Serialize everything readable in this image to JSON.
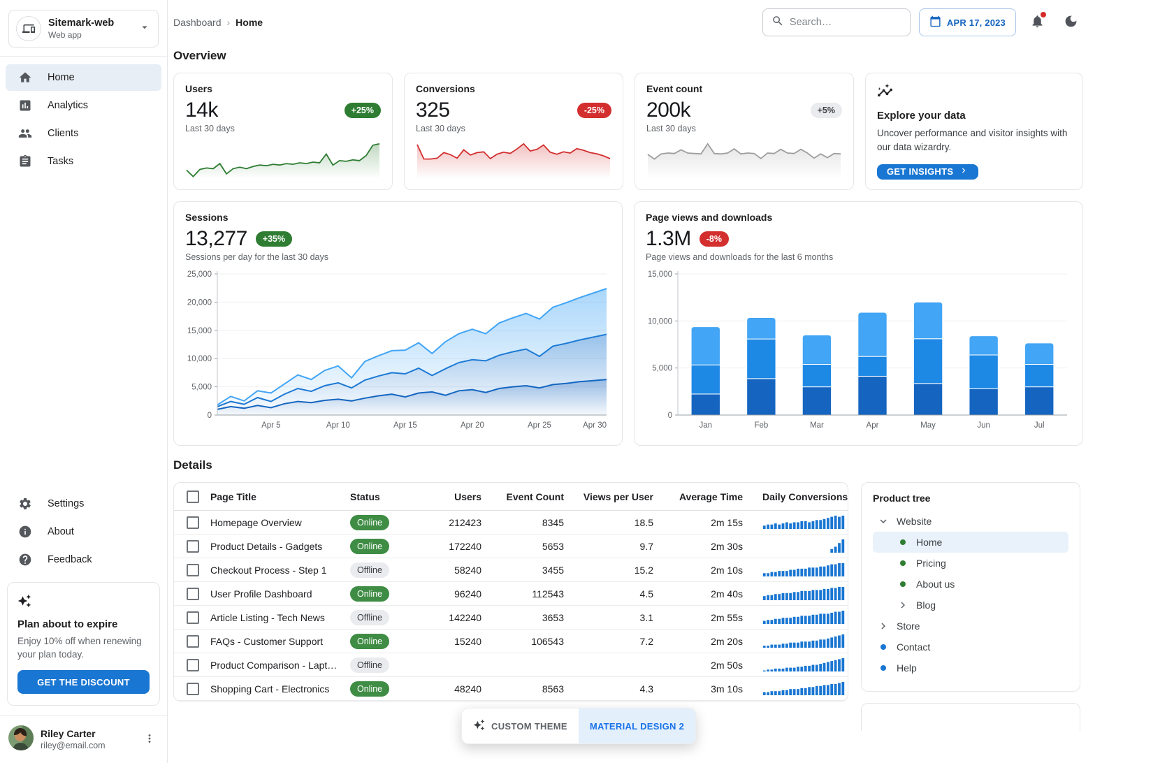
{
  "app": {
    "name": "Sitemark-web",
    "type": "Web app"
  },
  "sidebar": {
    "menu": [
      {
        "label": "Home",
        "icon": "home-icon",
        "selected": true
      },
      {
        "label": "Analytics",
        "icon": "analytics-icon",
        "selected": false
      },
      {
        "label": "Clients",
        "icon": "people-icon",
        "selected": false
      },
      {
        "label": "Tasks",
        "icon": "tasks-icon",
        "selected": false
      }
    ],
    "secondary": [
      {
        "label": "Settings",
        "icon": "gear-icon"
      },
      {
        "label": "About",
        "icon": "info-icon"
      },
      {
        "label": "Feedback",
        "icon": "help-icon"
      }
    ],
    "plan_card": {
      "title": "Plan about to expire",
      "body": "Enjoy 10% off when renewing your plan today.",
      "cta": "GET THE DISCOUNT"
    },
    "user": {
      "name": "Riley Carter",
      "email": "riley@email.com"
    }
  },
  "header": {
    "breadcrumb": {
      "root": "Dashboard",
      "current": "Home"
    },
    "search_placeholder": "Search…",
    "date": "APR 17, 2023"
  },
  "overview": {
    "title": "Overview",
    "stat_cards": [
      {
        "title": "Users",
        "value": "14k",
        "chip": "+25%",
        "trend": "up",
        "caption": "Last 30 days"
      },
      {
        "title": "Conversions",
        "value": "325",
        "chip": "-25%",
        "trend": "down",
        "caption": "Last 30 days"
      },
      {
        "title": "Event count",
        "value": "200k",
        "chip": "+5%",
        "trend": "neutral",
        "caption": "Last 30 days"
      }
    ],
    "promo_card": {
      "title": "Explore your data",
      "body": "Uncover performance and visitor insights with our data wizardry.",
      "cta": "GET INSIGHTS"
    }
  },
  "sessions_card": {
    "title": "Sessions",
    "value": "13,277",
    "chip": "+35%",
    "trend": "up",
    "caption": "Sessions per day for the last 30 days"
  },
  "pageviews_card": {
    "title": "Page views and downloads",
    "value": "1.3M",
    "chip": "-8%",
    "trend": "down",
    "caption": "Page views and downloads for the last 6 months"
  },
  "details": {
    "title": "Details",
    "columns": [
      "Page Title",
      "Status",
      "Users",
      "Event Count",
      "Views per User",
      "Average Time",
      "Daily Conversions"
    ],
    "rows": [
      {
        "title": "Homepage Overview",
        "status": "Online",
        "users": "212423",
        "event_count": "8345",
        "views_per_user": "18.5",
        "average_time": "2m 15s",
        "daily_conversions": [
          3,
          4,
          4,
          5,
          4,
          5,
          6,
          5,
          6,
          6,
          7,
          7,
          6,
          7,
          8,
          8,
          9,
          10,
          11,
          12,
          11,
          12
        ]
      },
      {
        "title": "Product Details - Gadgets",
        "status": "Online",
        "users": "172240",
        "event_count": "5653",
        "views_per_user": "9.7",
        "average_time": "2m 30s",
        "daily_conversions": [
          0,
          0,
          0,
          0,
          0,
          0,
          0,
          0,
          0,
          0,
          0,
          0,
          0,
          0,
          0,
          0,
          0,
          0,
          3,
          5,
          8,
          11
        ]
      },
      {
        "title": "Checkout Process - Step 1",
        "status": "Offline",
        "users": "58240",
        "event_count": "3455",
        "views_per_user": "15.2",
        "average_time": "2m 10s",
        "daily_conversions": [
          3,
          3,
          4,
          4,
          5,
          5,
          5,
          6,
          6,
          7,
          7,
          7,
          8,
          8,
          8,
          9,
          9,
          10,
          11,
          11,
          12,
          12
        ]
      },
      {
        "title": "User Profile Dashboard",
        "status": "Online",
        "users": "96240",
        "event_count": "112543",
        "views_per_user": "4.5",
        "average_time": "2m 40s",
        "daily_conversions": [
          4,
          5,
          5,
          6,
          6,
          7,
          7,
          7,
          8,
          8,
          9,
          9,
          9,
          10,
          10,
          10,
          11,
          11,
          12,
          12,
          13,
          13
        ]
      },
      {
        "title": "Article Listing - Tech News",
        "status": "Offline",
        "users": "142240",
        "event_count": "3653",
        "views_per_user": "3.1",
        "average_time": "2m 55s",
        "daily_conversions": [
          3,
          4,
          4,
          5,
          5,
          6,
          6,
          6,
          7,
          7,
          8,
          8,
          8,
          9,
          9,
          10,
          10,
          10,
          11,
          12,
          12,
          13
        ]
      },
      {
        "title": "FAQs - Customer Support",
        "status": "Online",
        "users": "15240",
        "event_count": "106543",
        "views_per_user": "7.2",
        "average_time": "2m 20s",
        "daily_conversions": [
          2,
          2,
          3,
          3,
          3,
          4,
          4,
          5,
          5,
          5,
          6,
          6,
          6,
          7,
          7,
          8,
          8,
          9,
          10,
          11,
          12,
          13
        ]
      },
      {
        "title": "Product Comparison - Lapt…",
        "status": "Offline",
        "users": "",
        "event_count": "",
        "views_per_user": "",
        "average_time": "2m 50s",
        "daily_conversions": [
          1,
          2,
          2,
          3,
          3,
          3,
          4,
          4,
          4,
          5,
          5,
          6,
          6,
          7,
          7,
          8,
          9,
          10,
          11,
          12,
          13,
          14
        ]
      },
      {
        "title": "Shopping Cart - Electronics",
        "status": "Online",
        "users": "48240",
        "event_count": "8563",
        "views_per_user": "4.3",
        "average_time": "3m 10s",
        "daily_conversions": [
          3,
          3,
          4,
          4,
          4,
          5,
          5,
          6,
          6,
          6,
          7,
          7,
          8,
          8,
          9,
          9,
          10,
          10,
          11,
          11,
          12,
          13
        ]
      }
    ]
  },
  "product_tree": {
    "title": "Product tree",
    "items": [
      {
        "label": "Website",
        "marker": "caret-down",
        "level": 0,
        "selected": false
      },
      {
        "label": "Home",
        "marker": "dot-green",
        "level": 1,
        "selected": true
      },
      {
        "label": "Pricing",
        "marker": "dot-green",
        "level": 1,
        "selected": false
      },
      {
        "label": "About us",
        "marker": "dot-green",
        "level": 1,
        "selected": false
      },
      {
        "label": "Blog",
        "marker": "chevron-right",
        "level": 1,
        "selected": false
      },
      {
        "label": "Store",
        "marker": "chevron-right",
        "level": 0,
        "selected": false
      },
      {
        "label": "Contact",
        "marker": "dot-blue",
        "level": 0,
        "selected": false
      },
      {
        "label": "Help",
        "marker": "dot-blue",
        "level": 0,
        "selected": false
      }
    ],
    "dot_colors": {
      "green": "#2e7d32",
      "blue": "#1976d2"
    }
  },
  "theme_switcher": {
    "options": [
      {
        "label": "CUSTOM THEME",
        "selected": false
      },
      {
        "label": "MATERIAL DESIGN 2",
        "selected": true
      }
    ]
  },
  "colors": {
    "primary": "#1976d2",
    "success": "#2e7d32",
    "error": "#d32f2f",
    "neutral": "#9e9e9e",
    "bar_stack": [
      "#1565c0",
      "#1e88e5",
      "#42a5f5"
    ],
    "area_stack": [
      "#1565c0",
      "#1976d2",
      "#42a5f5"
    ],
    "mini_bar": "#1976d2"
  },
  "chart_data": [
    {
      "id": "users-sparkline",
      "type": "area",
      "title": "Users – last 30 days",
      "color": "#2e7d32",
      "values": [
        200,
        24,
        220,
        260,
        240,
        380,
        100,
        240,
        280,
        240,
        300,
        340,
        320,
        360,
        340,
        380,
        360,
        400,
        380,
        420,
        400,
        640,
        340,
        460,
        440,
        480,
        460,
        600,
        880,
        920
      ]
    },
    {
      "id": "conversions-sparkline",
      "type": "area",
      "title": "Conversions – last 30 days",
      "color": "#d32f2f",
      "values": [
        1640,
        924,
        920,
        960,
        1240,
        1140,
        960,
        1380,
        1120,
        1240,
        1280,
        940,
        1160,
        1260,
        1202,
        1420,
        1680,
        1320,
        1400,
        1620,
        1260,
        1160,
        1280,
        1220,
        1440,
        1360,
        1240,
        1180,
        1080,
        940
      ]
    },
    {
      "id": "eventcount-sparkline",
      "type": "area",
      "title": "Event count – last 30 days",
      "color": "#9e9e9e",
      "values": [
        500,
        400,
        510,
        530,
        520,
        600,
        530,
        520,
        510,
        730,
        520,
        510,
        530,
        620,
        510,
        530,
        520,
        410,
        530,
        520,
        610,
        530,
        520,
        610,
        530,
        420,
        510,
        430,
        520,
        510
      ]
    },
    {
      "id": "sessions-chart",
      "type": "area",
      "stacked": true,
      "title": "Sessions per day for the last 30 days",
      "xlabel": "",
      "ylabel": "",
      "ylim": [
        0,
        25000
      ],
      "yticks": [
        0,
        5000,
        10000,
        15000,
        20000,
        25000
      ],
      "ytick_labels": [
        "0",
        "5,000",
        "10,000",
        "15,000",
        "20,000",
        "25,000"
      ],
      "xtick_labels": [
        "Apr 5",
        "Apr 10",
        "Apr 15",
        "Apr 20",
        "Apr 25",
        "Apr 30"
      ],
      "xtick_days": [
        5,
        10,
        15,
        20,
        25,
        30
      ],
      "x_range_days": 30,
      "grid": true,
      "legend": false,
      "series": [
        {
          "name": "bottom-band",
          "color": "#1565c0",
          "values": [
            1000,
            1500,
            1200,
            1700,
            1300,
            2000,
            2400,
            2200,
            2600,
            2800,
            2500,
            3000,
            3400,
            3700,
            3200,
            3900,
            4100,
            3500,
            4300,
            4500,
            4000,
            4700,
            5000,
            5200,
            4800,
            5400,
            5600,
            5900,
            6100,
            6300
          ]
        },
        {
          "name": "middle-band",
          "color": "#1976d2",
          "values": [
            500,
            900,
            700,
            1400,
            1100,
            1700,
            2300,
            2000,
            2600,
            2900,
            2300,
            3200,
            3500,
            3800,
            4100,
            4400,
            2900,
            4700,
            5000,
            5300,
            5600,
            5900,
            6200,
            6500,
            5600,
            6800,
            7100,
            7400,
            7700,
            8000
          ]
        },
        {
          "name": "top-band",
          "color": "#42a5f5",
          "values": [
            300,
            900,
            600,
            1200,
            1500,
            1800,
            2400,
            2100,
            2700,
            3000,
            1800,
            3300,
            3600,
            3900,
            4200,
            4500,
            3900,
            4800,
            5100,
            5400,
            4800,
            5700,
            6000,
            6300,
            6600,
            6900,
            7200,
            7500,
            7800,
            8100
          ]
        }
      ]
    },
    {
      "id": "pageviews-chart",
      "type": "bar",
      "stacked": true,
      "title": "Page views and downloads for the last 6 months",
      "categories": [
        "Jan",
        "Feb",
        "Mar",
        "Apr",
        "May",
        "Jun",
        "Jul"
      ],
      "ylim": [
        0,
        15000
      ],
      "yticks": [
        0,
        5000,
        10000,
        15000
      ],
      "ytick_labels": [
        "0",
        "5,000",
        "10,000",
        "15,000"
      ],
      "grid": true,
      "legend": false,
      "series": [
        {
          "name": "bottom-segment",
          "color": "#1565c0",
          "values": [
            2234,
            3872,
            2998,
            4125,
            3357,
            2789,
            2998
          ]
        },
        {
          "name": "middle-segment",
          "color": "#1e88e5",
          "values": [
            3098,
            4215,
            2384,
            2101,
            4752,
            3593,
            2384
          ]
        },
        {
          "name": "top-segment",
          "color": "#42a5f5",
          "values": [
            4051,
            2275,
            3129,
            4693,
            3904,
            2038,
            2275
          ]
        }
      ]
    }
  ]
}
